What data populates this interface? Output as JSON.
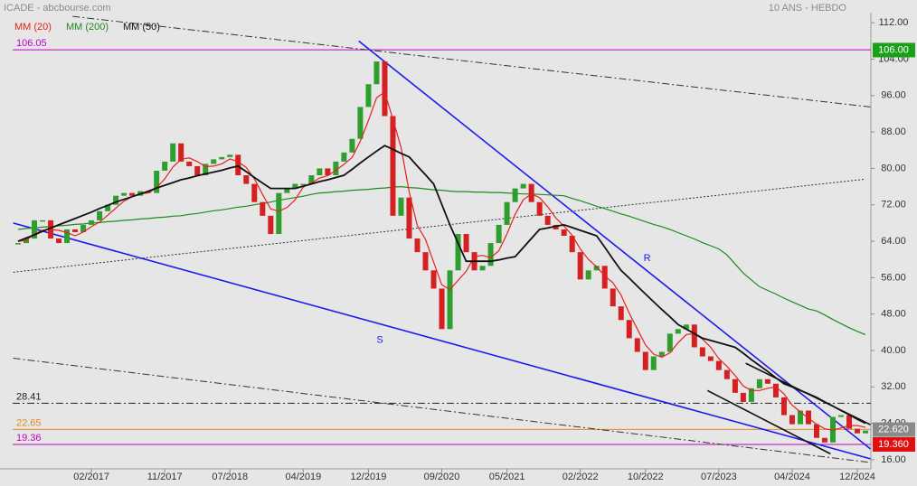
{
  "chart_data": {
    "type": "candlestick",
    "title": "ICADE - abcbourse.com",
    "subtitle": "10 ANS - HEBDO",
    "categories": [
      null,
      null,
      null,
      null,
      null,
      null,
      null,
      null,
      null,
      "02/2017",
      null,
      null,
      null,
      null,
      null,
      null,
      null,
      null,
      "11/2017",
      null,
      null,
      null,
      null,
      null,
      null,
      null,
      "07/2018",
      null,
      null,
      null,
      null,
      null,
      null,
      null,
      null,
      "04/2019",
      null,
      null,
      null,
      null,
      null,
      null,
      null,
      "12/2019",
      null,
      null,
      null,
      null,
      null,
      null,
      null,
      null,
      "09/2020",
      null,
      null,
      null,
      null,
      null,
      null,
      null,
      "05/2021",
      null,
      null,
      null,
      null,
      null,
      null,
      null,
      null,
      "02/2022",
      null,
      null,
      null,
      null,
      null,
      null,
      null,
      "10/2022",
      null,
      null,
      null,
      null,
      null,
      null,
      null,
      null,
      "07/2023",
      null,
      null,
      null,
      null,
      null,
      null,
      null,
      null,
      "04/2024",
      null,
      null,
      null,
      null,
      null,
      null,
      null,
      "12/2024",
      null
    ],
    "price": {
      "up_color": "#2e9e2e",
      "down_color": "#d42020",
      "values": [
        63.6,
        64.6,
        68.6,
        68.6,
        64.6,
        63.6,
        66.6,
        66,
        67.6,
        68.6,
        70.6,
        72,
        74,
        74.6,
        74,
        75,
        74.6,
        79.5,
        81.5,
        85.5,
        81.5,
        80.5,
        78.5,
        81,
        82,
        82.5,
        83,
        78.5,
        76.6,
        72.6,
        69.6,
        65.6,
        74.6,
        75.6,
        76.6,
        76.6,
        78.5,
        80,
        78.5,
        81.5,
        83.5,
        86.5,
        93.5,
        98.5,
        103.5,
        91.5,
        69.6,
        73.6,
        64.6,
        61.6,
        57.6,
        53.6,
        44.7,
        57.6,
        65.6,
        61.6,
        57.6,
        58.6,
        63.6,
        67.6,
        72.6,
        75.6,
        76.6,
        72.6,
        69.6,
        67.6,
        66.6,
        65.2,
        61.6,
        55.6,
        57.6,
        58.6,
        53.6,
        49.7,
        46.7,
        42.7,
        39.7,
        35.7,
        38.7,
        39.7,
        43.7,
        44.7,
        45.7,
        40.7,
        38.7,
        37.7,
        35.7,
        33.7,
        30.7,
        28.7,
        31.7,
        33.7,
        32.7,
        29.7,
        25.8,
        23.8,
        26.8,
        23.8,
        20.8,
        19.8,
        25.4,
        25.8,
        22.8,
        21.8,
        22.4
      ]
    },
    "series": [
      {
        "name": "MM (20)",
        "color": "#e8201c",
        "values": [
          64,
          64.2,
          65.6,
          66.4,
          66.6,
          66.4,
          65.9,
          65.2,
          66,
          67.2,
          68.2,
          69.7,
          71.3,
          72.8,
          73.8,
          74.4,
          74.6,
          75.8,
          77.7,
          80.3,
          82,
          82.3,
          81.5,
          80.4,
          80.5,
          81,
          82.1,
          81.5,
          80.2,
          77.7,
          74.3,
          71.1,
          70.6,
          71.4,
          73.1,
          75.9,
          76.8,
          77.9,
          78.4,
          79.6,
          80.9,
          82.4,
          86,
          90.5,
          95.5,
          96.8,
          90.8,
          84.6,
          74.8,
          67.4,
          64.4,
          59.4,
          54.4,
          53.4,
          55.4,
          57.4,
          60.6,
          60.9,
          60.4,
          61.9,
          65.6,
          69.9,
          73.1,
          74.4,
          73.6,
          71.6,
          69.1,
          67.3,
          65.3,
          62.3,
          60,
          58.4,
          56.4,
          54.9,
          52.2,
          48.2,
          44.7,
          41.2,
          39.2,
          38.5,
          39.5,
          41.7,
          43.5,
          43.7,
          42.5,
          40.7,
          38.2,
          36.5,
          34.5,
          32.2,
          31.2,
          31.2,
          31.7,
          32,
          30.5,
          28,
          26.5,
          25.1,
          23.8,
          22.8,
          22.5,
          23,
          23.5,
          23.5,
          23.1
        ]
      },
      {
        "name": "MM (200)",
        "color": "#1f8a1f",
        "values": [
          66.6,
          66.8,
          66.9,
          67.1,
          67.2,
          67.4,
          67.5,
          67.7,
          67.8,
          68,
          68.1,
          68.3,
          68.4,
          68.6,
          68.7,
          68.9,
          69,
          69.2,
          69.3,
          69.5,
          69.6,
          69.9,
          70.1,
          70.4,
          70.7,
          70.9,
          71.2,
          71.5,
          71.7,
          72,
          72.3,
          72.6,
          73,
          73.3,
          73.6,
          73.9,
          74.3,
          74.6,
          74.7,
          74.9,
          75,
          75.2,
          75.3,
          75.4,
          75.6,
          75.7,
          75.9,
          76,
          75.8,
          75.7,
          75.5,
          75.3,
          75.2,
          75,
          74.9,
          74.9,
          74.8,
          74.8,
          74.7,
          74.7,
          74.6,
          74.5,
          74.4,
          74.4,
          74.3,
          74.2,
          74.1,
          74,
          73.4,
          72.9,
          72.3,
          71.7,
          71.2,
          70.6,
          70,
          69.5,
          68.9,
          68.3,
          67.7,
          67.2,
          66.6,
          65.9,
          65.2,
          64.5,
          63.7,
          63,
          62.3,
          61,
          59,
          57,
          55.5,
          54,
          53.2,
          52.4,
          51.5,
          50.7,
          49.9,
          49.1,
          48.7,
          47.8,
          46.8,
          45.9,
          45,
          44.2,
          43.5
        ]
      },
      {
        "name": "MM (50)",
        "color": "#111111",
        "values": [
          64,
          64.7,
          65.4,
          66.2,
          66.9,
          67.6,
          68.3,
          69,
          69.7,
          70.4,
          71.2,
          71.9,
          72.6,
          73.2,
          73.8,
          74.4,
          75,
          75.7,
          76.3,
          76.9,
          77.5,
          77.9,
          78.4,
          78.8,
          79.2,
          79.6,
          80.1,
          80.5,
          79.3,
          78,
          76.8,
          75.6,
          75.6,
          75.6,
          75.6,
          76.1,
          76.6,
          77.1,
          77.5,
          78,
          78.5,
          79.8,
          81.2,
          82.5,
          83.8,
          85,
          84.2,
          83.3,
          82.5,
          80.5,
          78.6,
          76.6,
          72.1,
          67.6,
          63.6,
          59.6,
          59.6,
          59.6,
          59.6,
          59.9,
          60.3,
          60.6,
          62.6,
          64.6,
          66.6,
          66.9,
          67.3,
          67.6,
          67,
          66.4,
          65.8,
          65.2,
          62.7,
          60.1,
          57.6,
          55.9,
          54.1,
          52.4,
          50.7,
          49,
          47.4,
          45.7,
          44.7,
          43.7,
          42.7,
          42.2,
          41.7,
          41.2,
          40.7,
          39.4,
          38,
          36.7,
          35.4,
          34,
          32.7,
          32,
          31.2,
          30.5,
          29.7,
          28.7,
          27.8,
          26.8,
          25.9,
          24.9,
          24
        ]
      }
    ],
    "ylim": [
      14,
      117
    ],
    "yticks": [
      {
        "value": 16,
        "label": "16.00"
      },
      {
        "value": 24,
        "label": "24.00"
      },
      {
        "value": 32,
        "label": "32.00"
      },
      {
        "value": 40,
        "label": "40.00"
      },
      {
        "value": 48,
        "label": "48.00"
      },
      {
        "value": 56,
        "label": "56.00"
      },
      {
        "value": 64,
        "label": "64.00"
      },
      {
        "value": 72,
        "label": "72.00"
      },
      {
        "value": 80,
        "label": "80.00"
      },
      {
        "value": 88,
        "label": "88.00"
      },
      {
        "value": 96,
        "label": "96.00"
      },
      {
        "value": 104,
        "label": "104.00"
      },
      {
        "value": 112,
        "label": "112.00"
      }
    ],
    "levels": [
      {
        "value": 106.05,
        "color": "#c000c0",
        "style": "solid"
      },
      {
        "value": 28.41,
        "color": "#222222",
        "style": "dashdot"
      },
      {
        "value": 22.65,
        "color": "#e08a20",
        "style": "solid"
      },
      {
        "value": 19.36,
        "color": "#c000c0",
        "style": "solid"
      }
    ],
    "badges": [
      {
        "value": 106,
        "label": "106.00",
        "color": "#18a018"
      },
      {
        "value": 22.62,
        "label": "22.620",
        "color": "#8a8a8a"
      },
      {
        "value": 19.36,
        "label": "19.360",
        "color": "#e01010"
      }
    ],
    "trendlines": [
      {
        "x": [
          6.7,
          104.6
        ],
        "y": [
          113.4,
          93.5
        ],
        "color": "#333333",
        "style": "dashdot"
      },
      {
        "x": [
          -0.6,
          104.6
        ],
        "y": [
          38.3,
          15.4
        ],
        "color": "#333333",
        "style": "dashdot"
      },
      {
        "x": [
          -0.6,
          103.8
        ],
        "y": [
          57.2,
          77.6
        ],
        "color": "#333333",
        "style": "dotted"
      },
      {
        "x": [
          41.8,
          104.6
        ],
        "y": [
          108,
          18.4
        ],
        "color": "#1a1aee",
        "style": "solid"
      },
      {
        "x": [
          -0.6,
          104.6
        ],
        "y": [
          68,
          16.2
        ],
        "color": "#1a1aee",
        "style": "solid"
      },
      {
        "x": [
          84.6,
          99.7
        ],
        "y": [
          31.2,
          17.3
        ],
        "color": "#111111",
        "style": "solid"
      },
      {
        "x": [
          89.3,
          104.6
        ],
        "y": [
          37.2,
          23.7
        ],
        "color": "#111111",
        "style": "solid"
      }
    ],
    "annotations": [
      {
        "text": "R",
        "x": 77.2,
        "y": 60.2
      },
      {
        "text": "S",
        "x": 44.4,
        "y": 42.3
      }
    ]
  }
}
